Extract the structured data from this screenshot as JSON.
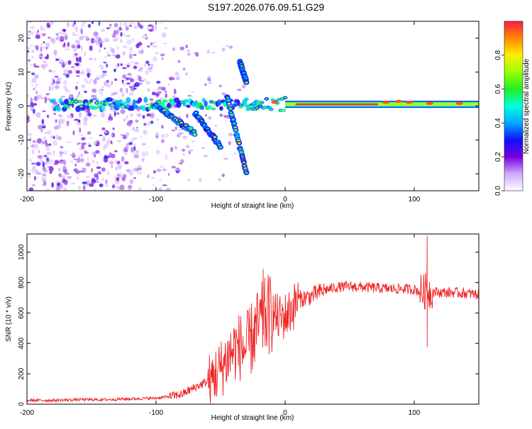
{
  "title": "S197.2026.076.09.51.G29",
  "chart_data": [
    {
      "type": "heatmap",
      "xlabel": "Height of straight line (km)",
      "ylabel": "Frequency (Hz)",
      "xlim": [
        -200,
        150
      ],
      "ylim": [
        -25,
        25
      ],
      "xticks": [
        -200,
        -100,
        0,
        100
      ],
      "xtick_labels": [
        "-200",
        "-100",
        "0",
        "100"
      ],
      "yticks": [
        -20,
        -10,
        0,
        10,
        20
      ],
      "ytick_labels": [
        "-20",
        "-10",
        "0",
        "10",
        "20"
      ],
      "colorbar": {
        "label": "Normalized spectral amplitude",
        "range": [
          0,
          1
        ],
        "ticks": [
          0.0,
          0.2,
          0.4,
          0.6,
          0.8
        ],
        "tick_labels": [
          "0.0",
          "0.2",
          "0.4",
          "0.6",
          "0.8"
        ],
        "colors": [
          "#ffffff",
          "#ccaaff",
          "#7700dd",
          "#1010ff",
          "#00aaff",
          "#00ffdd",
          "#22ee22",
          "#99ff00",
          "#ffee00",
          "#ff8800",
          "#ff1a4a"
        ]
      },
      "features": {
        "noise_region_x": [
          -200,
          -100
        ],
        "main_line_freq_hz": 0.5,
        "main_line_x": [
          0,
          150
        ],
        "doppler_tracks": [
          {
            "x": [
              -100,
              -70
            ],
            "freq": [
              0,
              -8
            ]
          },
          {
            "x": [
              -70,
              -50
            ],
            "freq": [
              -2,
              -12
            ]
          },
          {
            "x": [
              -45,
              -30
            ],
            "freq": [
              3,
              -20
            ]
          },
          {
            "x": [
              -35,
              -30
            ],
            "freq": [
              13,
              7
            ]
          }
        ]
      }
    },
    {
      "type": "line",
      "xlabel": "Height of straight line (km)",
      "ylabel": "SNR (10 * v/v)",
      "xlim": [
        -200,
        150
      ],
      "ylim": [
        0,
        1120
      ],
      "xticks": [
        -200,
        -100,
        0,
        100
      ],
      "xtick_labels": [
        "-200",
        "-100",
        "0",
        "100"
      ],
      "yticks": [
        0,
        200,
        400,
        600,
        800,
        1000
      ],
      "ytick_labels": [
        "0",
        "200",
        "400",
        "600",
        "800",
        "1000"
      ],
      "line_color": "#ee2222",
      "series": [
        {
          "name": "SNR",
          "x": [
            -200,
            -180,
            -160,
            -140,
            -120,
            -100,
            -90,
            -80,
            -70,
            -60,
            -50,
            -45,
            -40,
            -35,
            -30,
            -25,
            -20,
            -15,
            -10,
            -5,
            0,
            5,
            10,
            15,
            20,
            25,
            30,
            40,
            50,
            60,
            70,
            80,
            90,
            100,
            105,
            108,
            110,
            112,
            115,
            120,
            130,
            140,
            150
          ],
          "values": [
            25,
            25,
            30,
            30,
            35,
            40,
            50,
            65,
            110,
            150,
            230,
            300,
            360,
            380,
            360,
            450,
            520,
            580,
            600,
            560,
            580,
            620,
            690,
            700,
            710,
            730,
            750,
            770,
            775,
            770,
            765,
            760,
            760,
            755,
            740,
            740,
            760,
            740,
            740,
            735,
            735,
            730,
            720
          ]
        }
      ],
      "spikes": [
        {
          "x": -17,
          "y": 890
        },
        {
          "x": 110,
          "y": 1110
        },
        {
          "x": 110,
          "y": 375
        }
      ]
    }
  ]
}
